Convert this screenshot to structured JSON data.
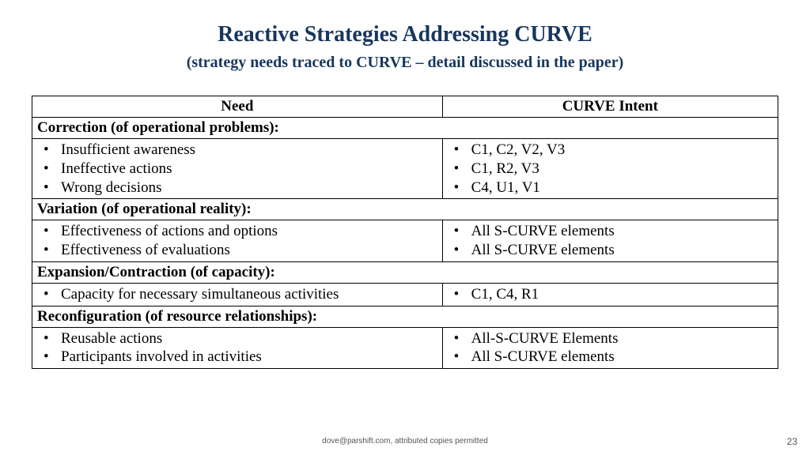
{
  "title": "Reactive Strategies Addressing CURVE",
  "subtitle": "(strategy needs traced to CURVE – detail discussed in the paper)",
  "columns": {
    "need": "Need",
    "intent": "CURVE Intent"
  },
  "sections": [
    {
      "header": "Correction (of operational problems):",
      "rows": [
        {
          "need": "Insufficient awareness",
          "intent": "C1, C2, V2, V3"
        },
        {
          "need": "Ineffective actions",
          "intent": "C1, R2, V3"
        },
        {
          "need": "Wrong decisions",
          "intent": "C4, U1, V1"
        }
      ]
    },
    {
      "header": "Variation (of operational reality):",
      "rows": [
        {
          "need": "Effectiveness of actions and options",
          "intent": "All S-CURVE elements"
        },
        {
          "need": "Effectiveness of evaluations",
          "intent": "All S-CURVE elements"
        }
      ]
    },
    {
      "header": "Expansion/Contraction (of capacity):",
      "rows": [
        {
          "need": "Capacity for necessary simultaneous activities",
          "intent": "C1, C4, R1"
        }
      ]
    },
    {
      "header": "Reconfiguration (of resource relationships):",
      "rows": [
        {
          "need": "Reusable actions",
          "intent": "All-S-CURVE Elements"
        },
        {
          "need": "Participants involved in activities",
          "intent": "All S-CURVE elements"
        }
      ]
    }
  ],
  "footer": "dove@parshift.com, attributed copies permitted",
  "pagenum": "23",
  "colors": {
    "heading": "#17365d",
    "text": "#000000",
    "border": "#000000",
    "footer": "#555555",
    "background": "#ffffff"
  }
}
